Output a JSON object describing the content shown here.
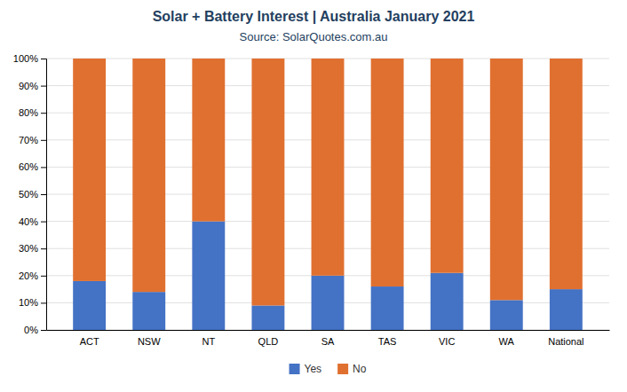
{
  "chart_data": {
    "type": "bar",
    "stacked": true,
    "title": "Solar + Battery Interest  |  Australia January 2021",
    "subtitle": "Source: SolarQuotes.com.au",
    "categories": [
      "ACT",
      "NSW",
      "NT",
      "QLD",
      "SA",
      "TAS",
      "VIC",
      "WA",
      "National"
    ],
    "series": [
      {
        "name": "Yes",
        "color": "#4472C4",
        "values": [
          18,
          14,
          40,
          9,
          20,
          16,
          21,
          11,
          15
        ]
      },
      {
        "name": "No",
        "color": "#E07030",
        "values": [
          82,
          86,
          60,
          91,
          80,
          84,
          79,
          89,
          85
        ]
      }
    ],
    "ylim": [
      0,
      100
    ],
    "yticks": [
      {
        "value": 0,
        "label": "0%"
      },
      {
        "value": 10,
        "label": "10%"
      },
      {
        "value": 20,
        "label": "20%"
      },
      {
        "value": 30,
        "label": "30%"
      },
      {
        "value": 40,
        "label": "40%"
      },
      {
        "value": 50,
        "label": "50%"
      },
      {
        "value": 60,
        "label": "60%"
      },
      {
        "value": 70,
        "label": "70%"
      },
      {
        "value": 80,
        "label": "80%"
      },
      {
        "value": 90,
        "label": "90%"
      },
      {
        "value": 100,
        "label": "100%"
      }
    ],
    "grid": true,
    "legend": "bottom"
  }
}
